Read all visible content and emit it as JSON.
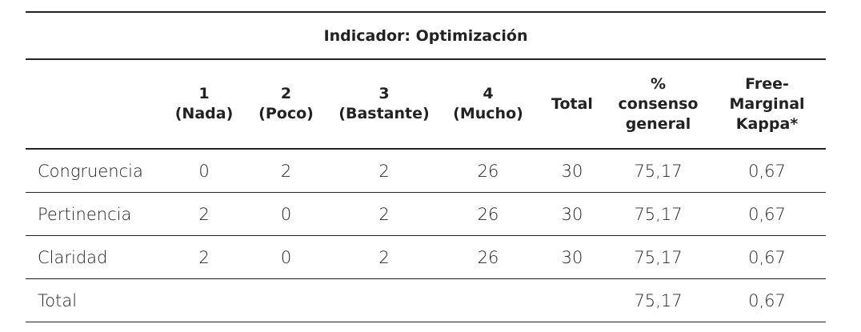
{
  "table": {
    "title": "Indicador: Optimización",
    "header": [
      [
        "1",
        "(Nada)"
      ],
      [
        "2",
        "(Poco)"
      ],
      [
        "3",
        "(Bastante)"
      ],
      [
        "4",
        "(Mucho)"
      ],
      [
        "Total"
      ],
      [
        "%",
        "consenso",
        "general"
      ],
      [
        "Free-",
        "Marginal",
        "Kappa*"
      ]
    ],
    "rows": [
      [
        "Congruencia",
        "0",
        "2",
        "2",
        "26",
        "30",
        "75,17",
        "0,67"
      ],
      [
        "Pertinencia",
        "2",
        "0",
        "2",
        "26",
        "30",
        "75,17",
        "0,67"
      ],
      [
        "Claridad",
        "2",
        "0",
        "2",
        "26",
        "30",
        "75,17",
        "0,67"
      ]
    ],
    "total": {
      "label": "Total",
      "consenso": "75,17",
      "kappa": "0,67"
    }
  }
}
